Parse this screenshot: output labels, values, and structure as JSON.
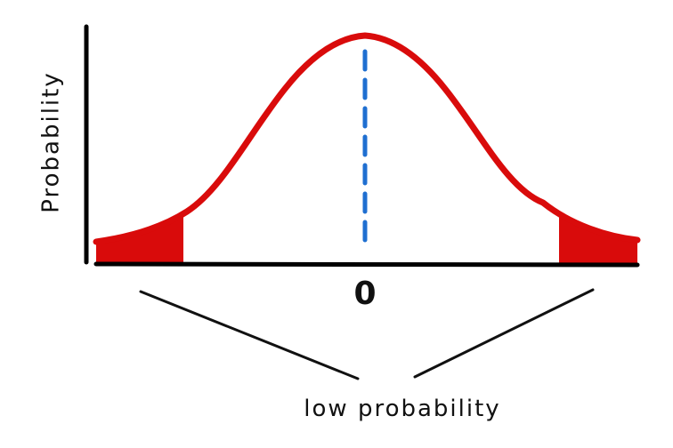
{
  "diagram": {
    "ylabel": "Probability",
    "center_label": "0",
    "annotation": "low probability"
  },
  "colors": {
    "curve": "#d90b0b",
    "tail_fill": "#d90b0b",
    "mean_line": "#1f6fd1",
    "axis": "#000000",
    "text": "#111111"
  }
}
